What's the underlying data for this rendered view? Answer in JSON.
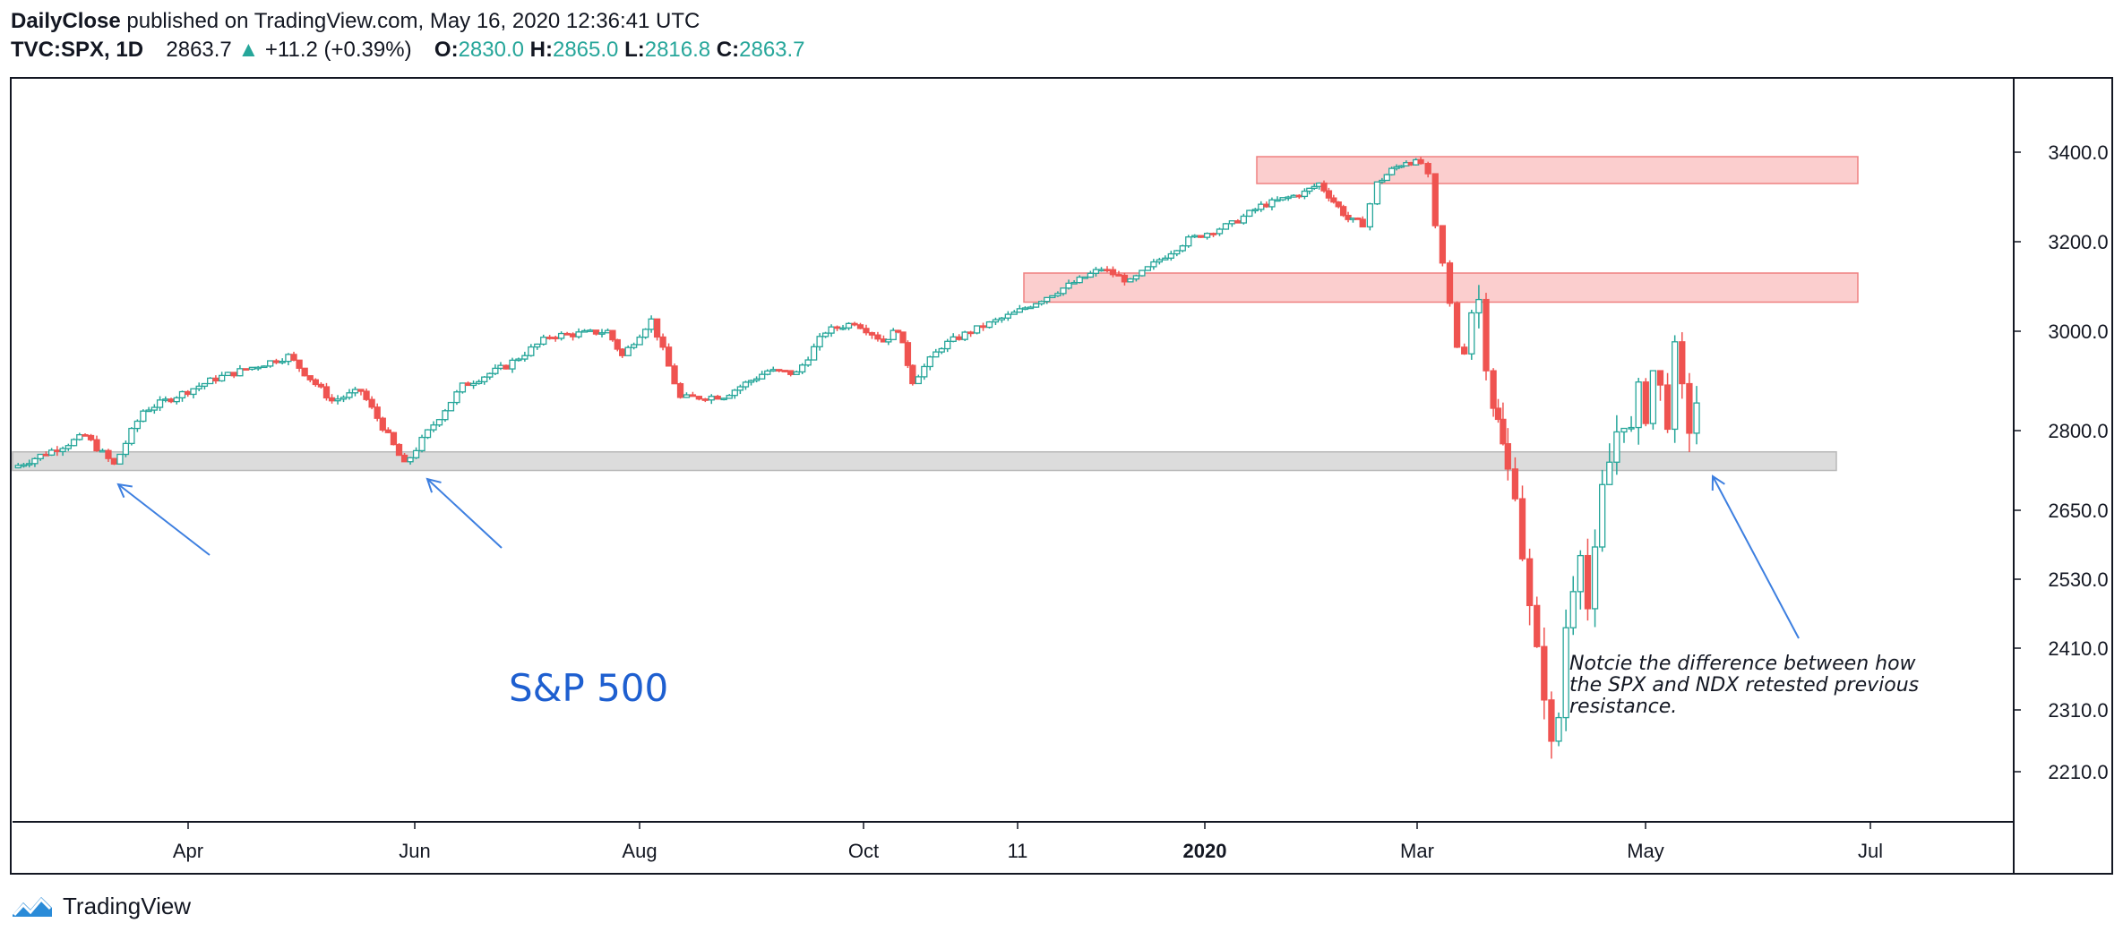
{
  "header": {
    "author": "DailyClose",
    "published": "published on TradingView.com, May 16, 2020 12:36:41 UTC",
    "symbol": "TVC:SPX, 1D",
    "last": "2863.7",
    "change": "+11.2 (+0.39%)",
    "o_label": "O:",
    "o_val": "2830.0",
    "h_label": "H:",
    "h_val": "2865.0",
    "l_label": "L:",
    "l_val": "2816.8",
    "c_label": "C:",
    "c_val": "2863.7"
  },
  "brand": {
    "name": "TradingView"
  },
  "colors": {
    "up": "#26a69a",
    "down": "#ef5350",
    "zone_red": "#f7a5a5",
    "zone_gray": "#d6d6d6",
    "arrow": "#3d7fe0",
    "label": "#1e5fd0"
  },
  "chart_data": {
    "type": "candlestick",
    "title": "S&P 500",
    "y_ticks": [
      3400.0,
      3200.0,
      3000.0,
      2800.0,
      2650.0,
      2530.0,
      2410.0,
      2310.0,
      2210.0
    ],
    "y_tick_labels": [
      "3400.0",
      "3200.0",
      "3000.0",
      "2800.0",
      "2650.0",
      "2530.0",
      "2410.0",
      "2310.0",
      "2210.0"
    ],
    "x_ticks": [
      {
        "label": "Apr",
        "bold": false
      },
      {
        "label": "Jun",
        "bold": false
      },
      {
        "label": "Aug",
        "bold": false
      },
      {
        "label": "Oct",
        "bold": false
      },
      {
        "label": "11",
        "bold": false
      },
      {
        "label": "2020",
        "bold": true
      },
      {
        "label": "Mar",
        "bold": false
      },
      {
        "label": "May",
        "bold": false
      },
      {
        "label": "Jul",
        "bold": false
      }
    ],
    "zones": [
      {
        "name": "resistance-zone-top",
        "low": 3330,
        "high": 3390,
        "color": "red"
      },
      {
        "name": "resistance-zone-mid",
        "low": 3065,
        "high": 3130,
        "color": "red"
      },
      {
        "name": "support-zone",
        "low": 2725,
        "high": 2760,
        "color": "gray"
      }
    ],
    "annotation": "Notcie the difference between how the SPX and NDX retested previous resistance.",
    "annotation_lines": [
      "Notcie the difference between how",
      "the SPX and NDX retested previous",
      "resistance."
    ],
    "path_points": [
      [
        2730,
        0
      ],
      [
        2790,
        0.05
      ],
      [
        2735,
        0.07
      ],
      [
        2840,
        0.09
      ],
      [
        2905,
        0.14
      ],
      [
        2950,
        0.19
      ],
      [
        2860,
        0.22
      ],
      [
        2880,
        0.24
      ],
      [
        2735,
        0.27
      ],
      [
        2890,
        0.31
      ],
      [
        2930,
        0.34
      ],
      [
        2990,
        0.37
      ],
      [
        3000,
        0.41
      ],
      [
        2950,
        0.42
      ],
      [
        3025,
        0.44
      ],
      [
        2865,
        0.46
      ],
      [
        2870,
        0.49
      ],
      [
        2920,
        0.52
      ],
      [
        2915,
        0.54
      ],
      [
        3000,
        0.56
      ],
      [
        3020,
        0.58
      ],
      [
        2980,
        0.6
      ],
      [
        3005,
        0.61
      ],
      [
        2900,
        0.62
      ],
      [
        2970,
        0.64
      ],
      [
        3000,
        0.66
      ],
      [
        3040,
        0.69
      ],
      [
        3090,
        0.72
      ],
      [
        3140,
        0.75
      ],
      [
        3110,
        0.77
      ],
      [
        3160,
        0.79
      ],
      [
        3205,
        0.81
      ],
      [
        3240,
        0.84
      ],
      [
        3280,
        0.86
      ],
      [
        3310,
        0.89
      ],
      [
        3330,
        0.9
      ],
      [
        3290,
        0.91
      ],
      [
        3250,
        0.92
      ],
      [
        3240,
        0.93
      ],
      [
        3330,
        0.94
      ],
      [
        3360,
        0.95
      ],
      [
        3380,
        0.96
      ],
      [
        3375,
        0.97
      ],
      [
        3345,
        0.975
      ],
      [
        3230,
        0.98
      ],
      [
        3150,
        0.985
      ],
      [
        3060,
        0.99
      ],
      [
        2970,
        0.995
      ],
      [
        2960,
        1.0
      ],
      [
        3050,
        1.005
      ],
      [
        3070,
        1.01
      ],
      [
        2950,
        1.015
      ],
      [
        2860,
        1.02
      ],
      [
        2720,
        1.03
      ],
      [
        2700,
        1.035
      ],
      [
        2580,
        1.04
      ],
      [
        2470,
        1.045
      ],
      [
        2390,
        1.05
      ],
      [
        2350,
        1.055
      ],
      [
        2240,
        1.06
      ],
      [
        2300,
        1.065
      ],
      [
        2450,
        1.07
      ],
      [
        2530,
        1.075
      ],
      [
        2600,
        1.08
      ],
      [
        2480,
        1.085
      ],
      [
        2560,
        1.09
      ],
      [
        2680,
        1.095
      ],
      [
        2740,
        1.1
      ],
      [
        2800,
        1.105
      ],
      [
        2830,
        1.11
      ],
      [
        2790,
        1.115
      ],
      [
        2870,
        1.12
      ],
      [
        2840,
        1.125
      ],
      [
        2920,
        1.13
      ],
      [
        2880,
        1.135
      ],
      [
        2830,
        1.14
      ],
      [
        2950,
        1.145
      ],
      [
        2870,
        1.15
      ],
      [
        2810,
        1.155
      ],
      [
        2860,
        1.16
      ]
    ]
  }
}
